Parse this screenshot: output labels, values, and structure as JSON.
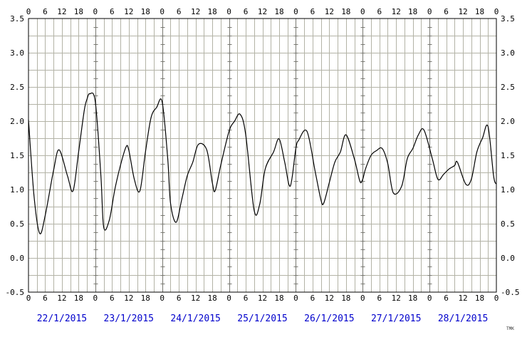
{
  "chart_data": {
    "type": "line",
    "title": "",
    "xlabel": "",
    "ylabel": "",
    "ylim": [
      -0.5,
      3.5
    ],
    "y_ticks": [
      -0.5,
      0.0,
      0.5,
      1.0,
      1.5,
      2.0,
      2.5,
      3.0,
      3.5
    ],
    "y_tick_labels": [
      "-0.5",
      "0.0",
      "0.5",
      "1.0",
      "1.5",
      "2.0",
      "2.5",
      "3.0",
      "3.5"
    ],
    "hour_tick_labels": [
      "0",
      "6",
      "12",
      "18"
    ],
    "grid": true,
    "days": [
      "22/1/2015",
      "23/1/2015",
      "24/1/2015",
      "25/1/2015",
      "26/1/2015",
      "27/1/2015",
      "28/1/2015"
    ],
    "x_unit": "hours since 22/1/2015 00:00",
    "xlim": [
      0,
      168
    ],
    "series": [
      {
        "name": "",
        "color": "#000000",
        "x": [
          0,
          2,
          4,
          6,
          9,
          11,
          14,
          16,
          18,
          20,
          21,
          22,
          24,
          26,
          27,
          29,
          31,
          33,
          35,
          36,
          38,
          40,
          42,
          44,
          46,
          48,
          50,
          51,
          53,
          55,
          57,
          59,
          61,
          64,
          66,
          67,
          69,
          72,
          74,
          76,
          78,
          81,
          83,
          85,
          88,
          90,
          92,
          94,
          96,
          97,
          100,
          103,
          105,
          106,
          108,
          110,
          112,
          114,
          117,
          119,
          120,
          121,
          123,
          125,
          127,
          129,
          131,
          134,
          136,
          138,
          140,
          142,
          145,
          147,
          149,
          151,
          153,
          154,
          157,
          159,
          161,
          163,
          165,
          167,
          168
        ],
        "y": [
          2.02,
          0.9,
          0.36,
          0.62,
          1.28,
          1.58,
          1.2,
          0.98,
          1.55,
          2.15,
          2.32,
          2.4,
          2.28,
          1.2,
          0.45,
          0.55,
          1.0,
          1.35,
          1.62,
          1.58,
          1.15,
          0.98,
          1.55,
          2.05,
          2.2,
          2.28,
          1.45,
          0.8,
          0.52,
          0.85,
          1.2,
          1.4,
          1.66,
          1.58,
          1.1,
          0.98,
          1.35,
          1.85,
          2.0,
          2.1,
          1.8,
          0.7,
          0.78,
          1.3,
          1.55,
          1.74,
          1.4,
          1.05,
          1.6,
          1.72,
          1.85,
          1.25,
          0.85,
          0.8,
          1.1,
          1.4,
          1.55,
          1.8,
          1.45,
          1.12,
          1.15,
          1.3,
          1.5,
          1.57,
          1.6,
          1.38,
          0.95,
          1.05,
          1.45,
          1.6,
          1.8,
          1.87,
          1.45,
          1.15,
          1.22,
          1.3,
          1.35,
          1.4,
          1.08,
          1.15,
          1.55,
          1.75,
          1.92,
          1.2,
          1.08
        ]
      }
    ]
  },
  "credit": "TMK"
}
